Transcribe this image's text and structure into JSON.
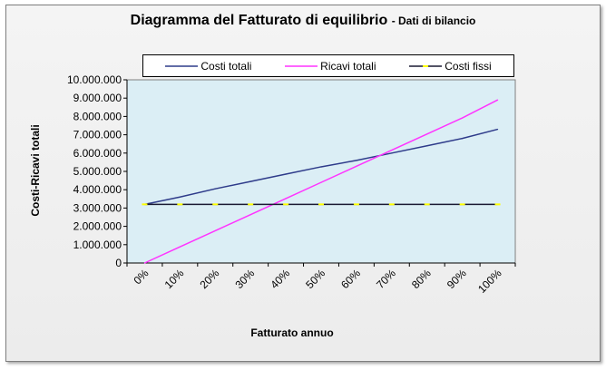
{
  "title": "Diagramma del Fatturato di equilibrio",
  "subtitle": "- Dati di bilancio",
  "colors": {
    "plot_background": "#dbeef5",
    "costi_totali": "#2e3b8a",
    "ricavi_totali": "#ff33ff",
    "costi_fissi_line": "#1a1a33",
    "costi_fissi_marker": "#ffff00"
  },
  "chart_data": {
    "type": "line",
    "title": "Diagramma del Fatturato di equilibrio - Dati di bilancio",
    "xlabel": "Fatturato annuo",
    "ylabel": "Costi-Ricavi totali",
    "categories": [
      "0%",
      "10%",
      "20%",
      "30%",
      "40%",
      "50%",
      "60%",
      "70%",
      "80%",
      "90%",
      "100%"
    ],
    "ylim": [
      0,
      10000000
    ],
    "yticks": [
      0,
      1000000,
      2000000,
      3000000,
      4000000,
      5000000,
      6000000,
      7000000,
      8000000,
      9000000,
      10000000
    ],
    "ytick_labels": [
      "0",
      "1.000.000",
      "2.000.000",
      "3.000.000",
      "4.000.000",
      "5.000.000",
      "6.000.000",
      "7.000.000",
      "8.000.000",
      "9.000.000",
      "10.000.000"
    ],
    "grid": false,
    "legend_position": "top",
    "series": [
      {
        "name": "Costi totali",
        "values": [
          3200000,
          3600000,
          4050000,
          4450000,
          4850000,
          5250000,
          5600000,
          6000000,
          6400000,
          6800000,
          7300000
        ]
      },
      {
        "name": "Ricavi totali",
        "values": [
          0,
          880000,
          1760000,
          2640000,
          3520000,
          4400000,
          5280000,
          6160000,
          7040000,
          7920000,
          8900000
        ]
      },
      {
        "name": "Costi fissi",
        "values": [
          3200000,
          3200000,
          3200000,
          3200000,
          3200000,
          3200000,
          3200000,
          3200000,
          3200000,
          3200000,
          3200000
        ]
      }
    ]
  }
}
